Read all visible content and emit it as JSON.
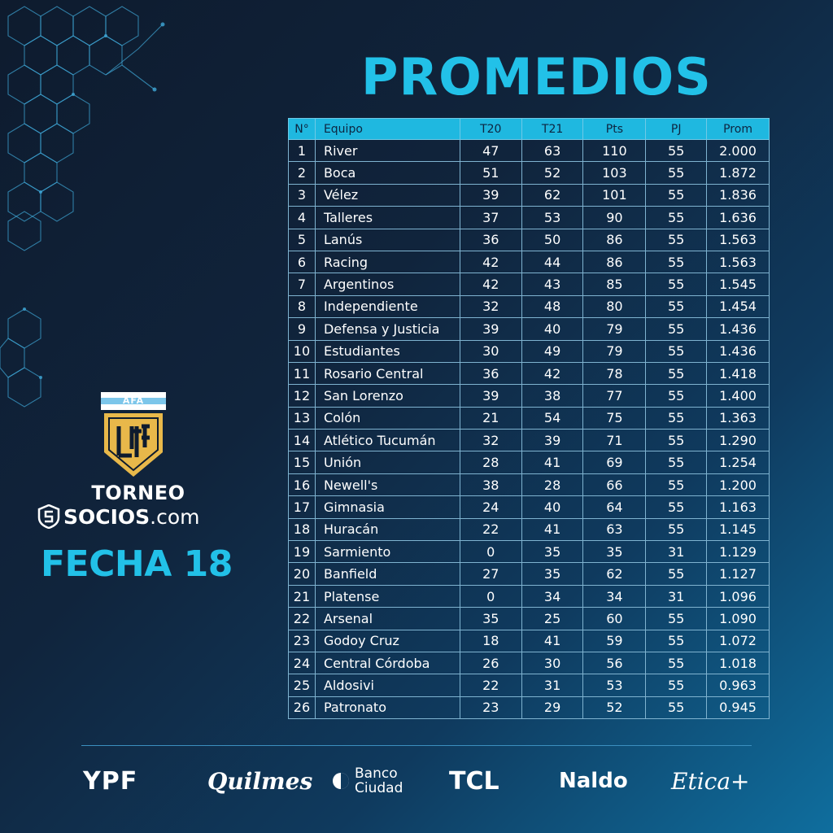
{
  "title": "PROMEDIOS",
  "table": {
    "headers": [
      "N°",
      "Equipo",
      "T20",
      "T21",
      "Pts",
      "PJ",
      "Prom"
    ],
    "rows": [
      [
        "1",
        "River",
        "47",
        "63",
        "110",
        "55",
        "2.000"
      ],
      [
        "2",
        "Boca",
        "51",
        "52",
        "103",
        "55",
        "1.872"
      ],
      [
        "3",
        "Vélez",
        "39",
        "62",
        "101",
        "55",
        "1.836"
      ],
      [
        "4",
        "Talleres",
        "37",
        "53",
        "90",
        "55",
        "1.636"
      ],
      [
        "5",
        "Lanús",
        "36",
        "50",
        "86",
        "55",
        "1.563"
      ],
      [
        "6",
        "Racing",
        "42",
        "44",
        "86",
        "55",
        "1.563"
      ],
      [
        "7",
        "Argentinos",
        "42",
        "43",
        "85",
        "55",
        "1.545"
      ],
      [
        "8",
        "Independiente",
        "32",
        "48",
        "80",
        "55",
        "1.454"
      ],
      [
        "9",
        "Defensa y Justicia",
        "39",
        "40",
        "79",
        "55",
        "1.436"
      ],
      [
        "10",
        "Estudiantes",
        "30",
        "49",
        "79",
        "55",
        "1.436"
      ],
      [
        "11",
        "Rosario Central",
        "36",
        "42",
        "78",
        "55",
        "1.418"
      ],
      [
        "12",
        "San Lorenzo",
        "39",
        "38",
        "77",
        "55",
        "1.400"
      ],
      [
        "13",
        "Colón",
        "21",
        "54",
        "75",
        "55",
        "1.363"
      ],
      [
        "14",
        "Atlético Tucumán",
        "32",
        "39",
        "71",
        "55",
        "1.290"
      ],
      [
        "15",
        "Unión",
        "28",
        "41",
        "69",
        "55",
        "1.254"
      ],
      [
        "16",
        "Newell's",
        "38",
        "28",
        "66",
        "55",
        "1.200"
      ],
      [
        "17",
        "Gimnasia",
        "24",
        "40",
        "64",
        "55",
        "1.163"
      ],
      [
        "18",
        "Huracán",
        "22",
        "41",
        "63",
        "55",
        "1.145"
      ],
      [
        "19",
        "Sarmiento",
        "0",
        "35",
        "35",
        "31",
        "1.129"
      ],
      [
        "20",
        "Banfield",
        "27",
        "35",
        "62",
        "55",
        "1.127"
      ],
      [
        "21",
        "Platense",
        "0",
        "34",
        "34",
        "31",
        "1.096"
      ],
      [
        "22",
        "Arsenal",
        "35",
        "25",
        "60",
        "55",
        "1.090"
      ],
      [
        "23",
        "Godoy Cruz",
        "18",
        "41",
        "59",
        "55",
        "1.072"
      ],
      [
        "24",
        "Central Córdoba",
        "26",
        "30",
        "56",
        "55",
        "1.018"
      ],
      [
        "25",
        "Aldosivi",
        "22",
        "31",
        "53",
        "55",
        "0.963"
      ],
      [
        "26",
        "Patronato",
        "23",
        "29",
        "52",
        "55",
        "0.945"
      ]
    ]
  },
  "logo": {
    "badge_text": "AFA",
    "monogram": "LPF",
    "torneo": "TORNEO",
    "socios_bold": "SOCIOS",
    "socios_rest": ".com",
    "fecha": "FECHA 18"
  },
  "sponsors": {
    "ypf": "YPF",
    "quilmes": "Quilmes",
    "banco_line1": "Banco",
    "banco_line2": "Ciudad",
    "tcl": "TCL",
    "naldo": "Naldo",
    "etica": "Etica+"
  },
  "colors": {
    "accent": "#22c1e8",
    "header_bg": "#1fb8e0",
    "background_dark": "#0e1b2e",
    "background_light": "#0f6e9e",
    "badge_gold": "#e8b84a"
  }
}
